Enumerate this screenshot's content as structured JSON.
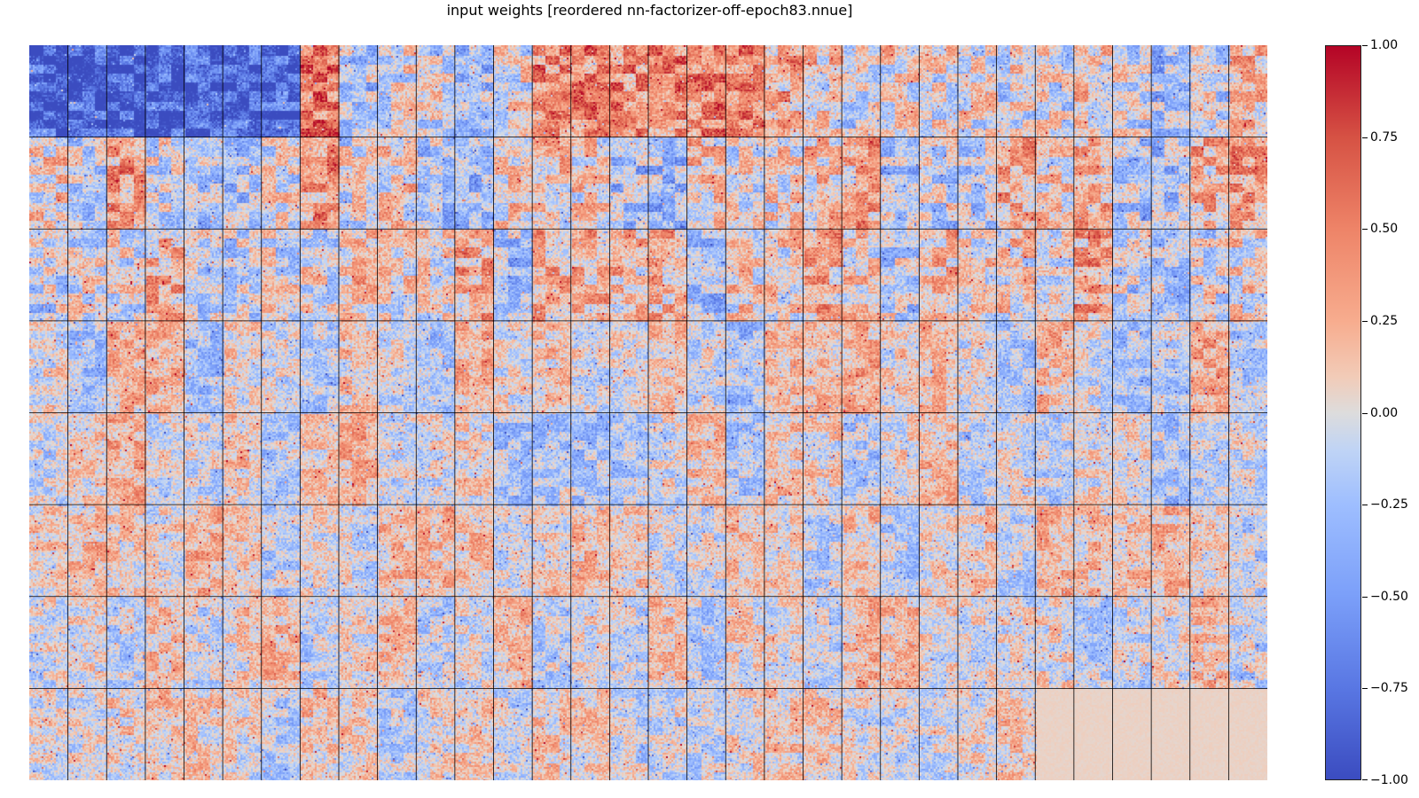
{
  "chart_data": {
    "type": "heatmap",
    "title": "input weights [reordered nn-factorizer-off-epoch83.nnue]",
    "colormap": "coolwarm",
    "vmin": -1.0,
    "vmax": 1.0,
    "grid": {
      "block_columns": 32,
      "block_rows": 8
    },
    "colorbar": {
      "ticks": [
        1.0,
        0.75,
        0.5,
        0.25,
        0.0,
        -0.25,
        -0.5,
        -0.75,
        -1.0
      ],
      "tick_labels": [
        "1.00",
        "0.75",
        "0.50",
        "0.25",
        "0.00",
        "−0.25",
        "−0.50",
        "−0.75",
        "−1.00"
      ]
    },
    "colors": {
      "low": "#3b4cc0",
      "mid": "#dddcdc",
      "high": "#b40426",
      "grid_line": "#000000"
    }
  }
}
